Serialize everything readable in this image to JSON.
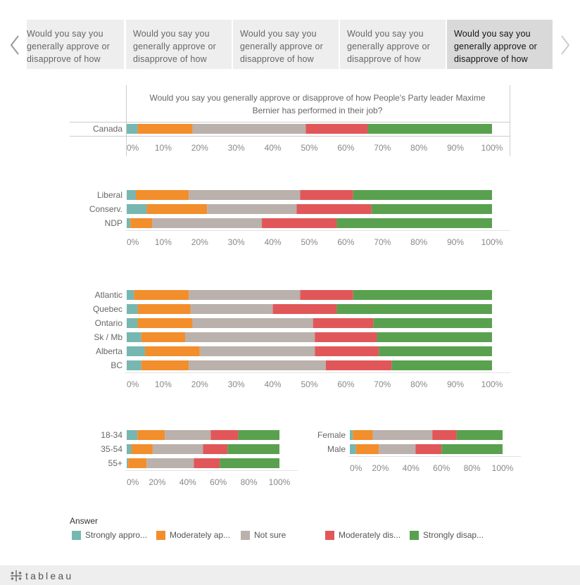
{
  "tabs": [
    {
      "label": "Would you say you generally approve or disapprove of how"
    },
    {
      "label": "Would you say you generally approve or disapprove of how"
    },
    {
      "label": "Would you say you generally approve or disapprove of how"
    },
    {
      "label": "Would you say you generally approve or disapprove of how"
    },
    {
      "label": "Would you say you generally approve or disapprove of how"
    }
  ],
  "active_tab": 4,
  "footer": {
    "logo_text": "tableau",
    "logo_icon": "tableau-cross-icon"
  },
  "nav": {
    "prev_icon": "chevron-left-icon",
    "next_icon": "chevron-right-icon"
  },
  "legend": {
    "title": "Answer",
    "items": [
      {
        "label": "Strongly appro...",
        "color": "#76b7b2"
      },
      {
        "label": "Moderately ap...",
        "color": "#f28e2b"
      },
      {
        "label": "Not sure",
        "color": "#bab0ac"
      },
      {
        "label": "Moderately dis...",
        "color": "#e15759"
      },
      {
        "label": "Strongly disap...",
        "color": "#59a14f"
      }
    ]
  },
  "chart_data": [
    {
      "type": "bar",
      "orientation": "horizontal",
      "stacked": "100%",
      "title": "Would you say you generally approve or disapprove of how People's Party leader Maxime Bernier has performed in their job?",
      "categories": [
        "Canada"
      ],
      "series": [
        {
          "name": "Strongly appro...",
          "values": [
            3
          ]
        },
        {
          "name": "Moderately ap...",
          "values": [
            15
          ]
        },
        {
          "name": "Not sure",
          "values": [
            31
          ]
        },
        {
          "name": "Moderately dis...",
          "values": [
            17
          ]
        },
        {
          "name": "Strongly disap...",
          "values": [
            34
          ]
        }
      ],
      "xlim": [
        0,
        100
      ],
      "xticks": [
        "0%",
        "10%",
        "20%",
        "30%",
        "40%",
        "50%",
        "60%",
        "70%",
        "80%",
        "90%",
        "100%"
      ]
    },
    {
      "type": "bar",
      "orientation": "horizontal",
      "stacked": "100%",
      "categories": [
        "Liberal",
        "Conserv.",
        "NDP"
      ],
      "series": [
        {
          "name": "Strongly appro...",
          "values": [
            2.5,
            5.5,
            1
          ]
        },
        {
          "name": "Moderately ap...",
          "values": [
            14.5,
            16.5,
            6
          ]
        },
        {
          "name": "Not sure",
          "values": [
            30.5,
            24.5,
            30
          ]
        },
        {
          "name": "Moderately dis...",
          "values": [
            14.5,
            20.5,
            20.5
          ]
        },
        {
          "name": "Strongly disap...",
          "values": [
            38,
            33,
            42.5
          ]
        }
      ],
      "xlim": [
        0,
        100
      ],
      "xticks": [
        "0%",
        "10%",
        "20%",
        "30%",
        "40%",
        "50%",
        "60%",
        "70%",
        "80%",
        "90%",
        "100%"
      ]
    },
    {
      "type": "bar",
      "orientation": "horizontal",
      "stacked": "100%",
      "categories": [
        "Atlantic",
        "Quebec",
        "Ontario",
        "Sk / Mb",
        "Alberta",
        "BC"
      ],
      "series": [
        {
          "name": "Strongly appro...",
          "values": [
            2,
            3,
            3,
            4,
            5,
            4
          ]
        },
        {
          "name": "Moderately ap...",
          "values": [
            15,
            14.5,
            15,
            12,
            15,
            13
          ]
        },
        {
          "name": "Not sure",
          "values": [
            30.5,
            22.5,
            33,
            35.5,
            31.5,
            37.5
          ]
        },
        {
          "name": "Moderately dis...",
          "values": [
            14.5,
            17.5,
            16.5,
            17,
            17.5,
            18
          ]
        },
        {
          "name": "Strongly disap...",
          "values": [
            38,
            42.5,
            32.5,
            31.5,
            31,
            27.5
          ]
        }
      ],
      "xlim": [
        0,
        100
      ],
      "xticks": [
        "0%",
        "10%",
        "20%",
        "30%",
        "40%",
        "50%",
        "60%",
        "70%",
        "80%",
        "90%",
        "100%"
      ]
    },
    {
      "type": "bar",
      "orientation": "horizontal",
      "stacked": "100%",
      "categories": [
        "18-34",
        "35-54",
        "55+"
      ],
      "series": [
        {
          "name": "Strongly appro...",
          "values": [
            7,
            3,
            1
          ]
        },
        {
          "name": "Moderately ap...",
          "values": [
            18,
            14,
            12
          ]
        },
        {
          "name": "Not sure",
          "values": [
            30,
            33,
            31
          ]
        },
        {
          "name": "Moderately dis...",
          "values": [
            18,
            16,
            17
          ]
        },
        {
          "name": "Strongly disap...",
          "values": [
            27,
            34,
            39
          ]
        }
      ],
      "xlim": [
        0,
        100
      ],
      "xticks": [
        "0%",
        "20%",
        "40%",
        "60%",
        "80%",
        "100%"
      ]
    },
    {
      "type": "bar",
      "orientation": "horizontal",
      "stacked": "100%",
      "categories": [
        "Female",
        "Male"
      ],
      "series": [
        {
          "name": "Strongly appro...",
          "values": [
            2,
            4
          ]
        },
        {
          "name": "Moderately ap...",
          "values": [
            13,
            15
          ]
        },
        {
          "name": "Not sure",
          "values": [
            39,
            24
          ]
        },
        {
          "name": "Moderately dis...",
          "values": [
            16,
            17
          ]
        },
        {
          "name": "Strongly disap...",
          "values": [
            30,
            40
          ]
        }
      ],
      "xlim": [
        0,
        100
      ],
      "xticks": [
        "0%",
        "20%",
        "40%",
        "60%",
        "80%",
        "100%"
      ]
    }
  ]
}
